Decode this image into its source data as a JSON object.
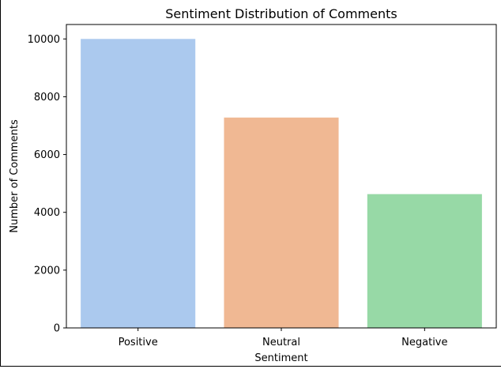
{
  "chart_data": {
    "type": "bar",
    "title": "Sentiment Distribution of Comments",
    "xlabel": "Sentiment",
    "ylabel": "Number of Comments",
    "categories": [
      "Positive",
      "Neutral",
      "Negative"
    ],
    "values": [
      10000,
      7280,
      4630
    ],
    "colors": [
      "#abc9ee",
      "#f0b893",
      "#97d9a6"
    ],
    "ylim": [
      0,
      10500
    ],
    "yticks": [
      0,
      2000,
      4000,
      6000,
      8000,
      10000
    ],
    "grid": false,
    "legend": "none"
  }
}
